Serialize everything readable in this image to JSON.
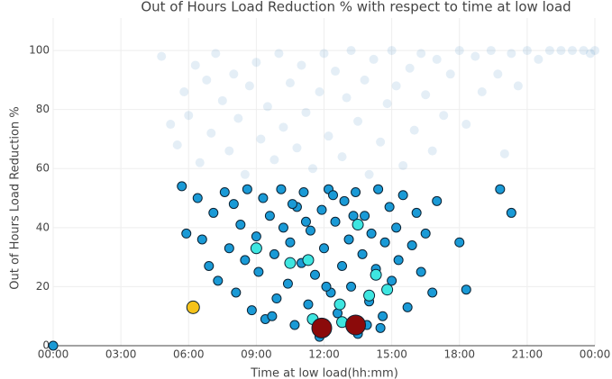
{
  "chart_data": {
    "type": "scatter",
    "title": "Out of Hours Load Reduction % with respect to time at low load",
    "x_label": "Time at low load(hh:mm)",
    "y_label": "Out of Hours Load Reduction %",
    "xlim": [
      0,
      24
    ],
    "ylim": [
      0,
      111
    ],
    "grid": true,
    "xticks": [
      {
        "value": 0,
        "label": "00:00"
      },
      {
        "value": 3,
        "label": "03:00"
      },
      {
        "value": 6,
        "label": "06:00"
      },
      {
        "value": 9,
        "label": "09:00"
      },
      {
        "value": 12,
        "label": "12:00"
      },
      {
        "value": 15,
        "label": "15:00"
      },
      {
        "value": 18,
        "label": "18:00"
      },
      {
        "value": 21,
        "label": "21:00"
      },
      {
        "value": 24,
        "label": "00:00"
      }
    ],
    "yticks": [
      0,
      20,
      40,
      60,
      80,
      100
    ],
    "series": [
      {
        "color": "#1f77b4",
        "opacity": 0.12,
        "outline": false,
        "marker_size": 5,
        "x": [
          4.8,
          5.2,
          5.5,
          5.8,
          6,
          6.3,
          6.5,
          6.8,
          7,
          7.2,
          7.5,
          7.8,
          8,
          8.2,
          8.5,
          8.7,
          9,
          9.2,
          9.5,
          9.8,
          10,
          10.2,
          10.5,
          10.8,
          11,
          11.2,
          11.5,
          11.8,
          12,
          12.2,
          12.5,
          12.8,
          13,
          13.2,
          13.5,
          13.8,
          14,
          14.2,
          14.5,
          14.8,
          15,
          15.2,
          15.5,
          15.8,
          16,
          16.3,
          16.5,
          16.8,
          17,
          17.3,
          17.6,
          18,
          18.3,
          18.7,
          19,
          19.4,
          19.7,
          20,
          20.3,
          20.6,
          21,
          21.5,
          22,
          22.5,
          23,
          23.5,
          23.8,
          24
        ],
        "values": [
          98,
          75,
          68,
          86,
          78,
          95,
          62,
          90,
          72,
          99,
          83,
          66,
          92,
          77,
          58,
          88,
          96,
          70,
          81,
          63,
          99,
          74,
          89,
          67,
          95,
          79,
          60,
          86,
          99,
          71,
          93,
          64,
          84,
          100,
          76,
          90,
          58,
          97,
          69,
          82,
          100,
          88,
          61,
          94,
          73,
          99,
          85,
          66,
          97,
          78,
          92,
          100,
          75,
          98,
          86,
          100,
          92,
          65,
          99,
          88,
          100,
          97,
          100,
          100,
          100,
          100,
          99,
          100
        ]
      },
      {
        "color": "#1a9ad6",
        "opacity": 1,
        "outline": true,
        "marker_size": 5,
        "x": [
          0,
          5.7,
          5.9,
          6.4,
          6.6,
          6.9,
          7.1,
          7.3,
          7.6,
          7.8,
          8,
          8.1,
          8.3,
          8.5,
          8.6,
          8.8,
          9,
          9.1,
          9.3,
          9.4,
          9.6,
          9.8,
          9.9,
          10.1,
          10.2,
          10.4,
          10.5,
          10.7,
          10.8,
          11,
          11.1,
          11.3,
          11.4,
          11.6,
          11.7,
          11.9,
          12,
          12.2,
          12.3,
          12.5,
          12.6,
          12.8,
          12.9,
          13.1,
          13.2,
          13.4,
          13.5,
          13.7,
          13.8,
          14,
          14.1,
          14.3,
          14.4,
          14.6,
          14.7,
          14.9,
          15,
          15.2,
          15.3,
          15.5,
          15.7,
          15.9,
          16.1,
          16.3,
          16.5,
          16.8,
          17,
          18,
          18.3,
          19.8,
          20.3,
          10.6,
          11.8,
          12.4,
          13.3,
          13.9,
          9.7,
          12.1,
          14.5,
          11.2
        ],
        "values": [
          0,
          54,
          38,
          50,
          36,
          27,
          45,
          22,
          52,
          33,
          48,
          18,
          41,
          29,
          53,
          12,
          37,
          25,
          50,
          9,
          44,
          31,
          16,
          53,
          40,
          21,
          35,
          7,
          47,
          28,
          52,
          14,
          39,
          24,
          5,
          46,
          33,
          53,
          18,
          42,
          11,
          27,
          49,
          36,
          20,
          52,
          4,
          31,
          44,
          15,
          38,
          26,
          53,
          10,
          35,
          47,
          22,
          40,
          29,
          51,
          13,
          34,
          45,
          25,
          38,
          18,
          49,
          35,
          19,
          53,
          45,
          48,
          3,
          51,
          44,
          7,
          10,
          20,
          6,
          42
        ]
      },
      {
        "color": "#3ee6e0",
        "opacity": 1,
        "outline": true,
        "marker_size": 6,
        "x": [
          9,
          10.5,
          11.3,
          11.5,
          12.7,
          12.8,
          14,
          14.8,
          13.5,
          14.3
        ],
        "values": [
          33,
          28,
          29,
          9,
          14,
          8,
          17,
          19,
          41,
          24
        ]
      },
      {
        "color": "#f5c21b",
        "opacity": 1,
        "outline": true,
        "marker_size": 7,
        "x": [
          6.2
        ],
        "values": [
          13
        ]
      },
      {
        "color": "#8b0a0a",
        "opacity": 1,
        "outline": true,
        "marker_size": 11,
        "x": [
          11.9,
          13.4
        ],
        "values": [
          6,
          7
        ]
      }
    ]
  }
}
